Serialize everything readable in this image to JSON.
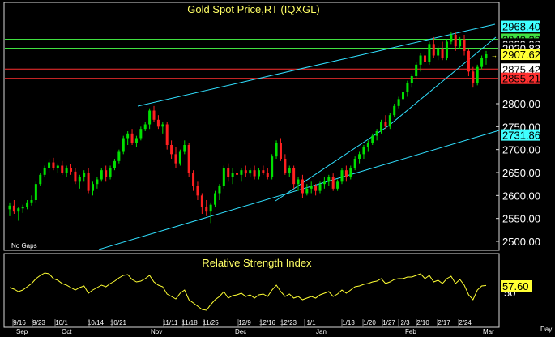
{
  "colors": {
    "bg": "#000000",
    "frame": "#d8d8d8",
    "up": "#00e000",
    "down": "#ff2020",
    "price_line_green": "#40e040",
    "price_line_red": "#ff3030",
    "channel": "#30e0ff",
    "rsi": "#ffff33",
    "title": "#ffff66"
  },
  "main_panel": {
    "title": "Gold Spot Price,RT  (IQXGL)",
    "note": "No Gaps",
    "y_ticks": [
      "2500.00",
      "2550.00",
      "2600.00",
      "2650.00",
      "2700.00",
      "2750.00",
      "2800.00"
    ],
    "y_tick_values": [
      2500,
      2550,
      2600,
      2650,
      2700,
      2750,
      2800
    ],
    "price_tags": [
      {
        "text": "2968.40",
        "value": 2968.4,
        "bg": "#40ffff",
        "fg": "#000000"
      },
      {
        "text": "2940.33",
        "value": 2940.33,
        "bg": "#40e040",
        "fg": "#000000"
      },
      {
        "text": "2929.98",
        "value": 2929.98,
        "bg": "#000000",
        "fg": "#ffffff"
      },
      {
        "text": "2920.83",
        "value": 2920.83,
        "bg": "#000000",
        "fg": "#ffffff"
      },
      {
        "text": "2907.62",
        "value": 2907.62,
        "bg": "#ffff33",
        "fg": "#000000"
      },
      {
        "text": "2875.42",
        "value": 2875.42,
        "bg": "#ffffff",
        "fg": "#000000"
      },
      {
        "text": "2855.21",
        "value": 2855.21,
        "bg": "#ff3030",
        "fg": "#000000"
      },
      {
        "text": "2731.86",
        "value": 2731.86,
        "bg": "#40ffff",
        "fg": "#000000"
      }
    ],
    "horizontal_lines": [
      {
        "value": 2940.33,
        "color": "#40e040"
      },
      {
        "value": 2920.83,
        "color": "#40e040"
      },
      {
        "value": 2875.42,
        "color": "#ff3030"
      },
      {
        "value": 2855.21,
        "color": "#ff3030"
      }
    ]
  },
  "rsi_panel": {
    "title": "Relative Strength Index",
    "value_tag": "57.60",
    "value": 57.6,
    "ref_label": "50"
  },
  "x_axis": {
    "date_labels": [
      "9/16",
      "9/23",
      "10/1",
      "10/14",
      "10/21",
      "11/11",
      "11/18",
      "11/25",
      "12/9",
      "12/16",
      "12/23",
      "1/1",
      "1/13",
      "1/20",
      "1/27",
      "2/3",
      "2/10",
      "2/17",
      "2/24"
    ],
    "month_labels": [
      "Sep",
      "Oct",
      "Nov",
      "Dec",
      "Jan",
      "Feb",
      "Mar"
    ],
    "period_label": "Day"
  },
  "chart_data": {
    "type": "candlestick",
    "title": "Gold Spot Price,RT  (IQXGL)",
    "ylim": [
      2480,
      2980
    ],
    "period": "Day",
    "series": [
      {
        "name": "Gold Spot Price",
        "ohlc": [
          [
            2570,
            2585,
            2555,
            2578
          ],
          [
            2578,
            2590,
            2560,
            2565
          ],
          [
            2565,
            2575,
            2545,
            2572
          ],
          [
            2572,
            2580,
            2562,
            2575
          ],
          [
            2575,
            2590,
            2570,
            2585
          ],
          [
            2585,
            2600,
            2578,
            2590
          ],
          [
            2590,
            2630,
            2585,
            2625
          ],
          [
            2625,
            2650,
            2620,
            2645
          ],
          [
            2645,
            2665,
            2640,
            2660
          ],
          [
            2660,
            2680,
            2650,
            2672
          ],
          [
            2672,
            2682,
            2655,
            2660
          ],
          [
            2660,
            2670,
            2650,
            2665
          ],
          [
            2665,
            2675,
            2645,
            2650
          ],
          [
            2650,
            2665,
            2640,
            2660
          ],
          [
            2660,
            2668,
            2645,
            2652
          ],
          [
            2652,
            2660,
            2625,
            2630
          ],
          [
            2630,
            2645,
            2615,
            2640
          ],
          [
            2640,
            2655,
            2630,
            2650
          ],
          [
            2650,
            2660,
            2605,
            2610
          ],
          [
            2610,
            2630,
            2600,
            2625
          ],
          [
            2625,
            2640,
            2615,
            2635
          ],
          [
            2635,
            2660,
            2630,
            2655
          ],
          [
            2655,
            2665,
            2630,
            2640
          ],
          [
            2640,
            2665,
            2635,
            2660
          ],
          [
            2660,
            2680,
            2655,
            2675
          ],
          [
            2675,
            2700,
            2670,
            2695
          ],
          [
            2695,
            2730,
            2690,
            2725
          ],
          [
            2725,
            2740,
            2710,
            2735
          ],
          [
            2735,
            2745,
            2710,
            2715
          ],
          [
            2715,
            2730,
            2705,
            2725
          ],
          [
            2725,
            2750,
            2720,
            2745
          ],
          [
            2745,
            2760,
            2740,
            2755
          ],
          [
            2755,
            2790,
            2745,
            2785
          ],
          [
            2785,
            2795,
            2760,
            2765
          ],
          [
            2765,
            2775,
            2745,
            2750
          ],
          [
            2750,
            2760,
            2735,
            2755
          ],
          [
            2755,
            2760,
            2700,
            2710
          ],
          [
            2710,
            2720,
            2680,
            2690
          ],
          [
            2690,
            2705,
            2660,
            2670
          ],
          [
            2670,
            2700,
            2665,
            2695
          ],
          [
            2695,
            2720,
            2690,
            2710
          ],
          [
            2710,
            2715,
            2640,
            2650
          ],
          [
            2650,
            2655,
            2610,
            2620
          ],
          [
            2620,
            2630,
            2590,
            2600
          ],
          [
            2600,
            2605,
            2560,
            2575
          ],
          [
            2575,
            2590,
            2555,
            2565
          ],
          [
            2565,
            2585,
            2540,
            2580
          ],
          [
            2580,
            2610,
            2575,
            2605
          ],
          [
            2605,
            2625,
            2590,
            2620
          ],
          [
            2620,
            2665,
            2615,
            2660
          ],
          [
            2660,
            2670,
            2630,
            2640
          ],
          [
            2640,
            2660,
            2625,
            2650
          ],
          [
            2650,
            2670,
            2640,
            2645
          ],
          [
            2645,
            2660,
            2630,
            2655
          ],
          [
            2655,
            2665,
            2640,
            2648
          ],
          [
            2648,
            2660,
            2640,
            2655
          ],
          [
            2655,
            2665,
            2635,
            2642
          ],
          [
            2642,
            2660,
            2635,
            2655
          ],
          [
            2655,
            2665,
            2645,
            2650
          ],
          [
            2650,
            2660,
            2635,
            2640
          ],
          [
            2640,
            2690,
            2635,
            2685
          ],
          [
            2685,
            2720,
            2680,
            2715
          ],
          [
            2715,
            2725,
            2675,
            2680
          ],
          [
            2680,
            2690,
            2645,
            2650
          ],
          [
            2650,
            2665,
            2640,
            2660
          ],
          [
            2660,
            2665,
            2615,
            2625
          ],
          [
            2625,
            2640,
            2610,
            2635
          ],
          [
            2635,
            2645,
            2595,
            2605
          ],
          [
            2605,
            2625,
            2600,
            2615
          ],
          [
            2615,
            2630,
            2605,
            2620
          ],
          [
            2620,
            2625,
            2600,
            2610
          ],
          [
            2610,
            2630,
            2605,
            2625
          ],
          [
            2625,
            2640,
            2615,
            2630
          ],
          [
            2630,
            2645,
            2620,
            2640
          ],
          [
            2640,
            2648,
            2610,
            2615
          ],
          [
            2615,
            2635,
            2610,
            2630
          ],
          [
            2630,
            2660,
            2625,
            2655
          ],
          [
            2655,
            2665,
            2630,
            2640
          ],
          [
            2640,
            2665,
            2635,
            2660
          ],
          [
            2660,
            2685,
            2655,
            2680
          ],
          [
            2680,
            2695,
            2670,
            2690
          ],
          [
            2690,
            2710,
            2680,
            2705
          ],
          [
            2705,
            2720,
            2695,
            2715
          ],
          [
            2715,
            2735,
            2710,
            2730
          ],
          [
            2730,
            2745,
            2720,
            2740
          ],
          [
            2740,
            2765,
            2735,
            2760
          ],
          [
            2760,
            2775,
            2745,
            2750
          ],
          [
            2750,
            2780,
            2745,
            2775
          ],
          [
            2775,
            2800,
            2770,
            2795
          ],
          [
            2795,
            2815,
            2790,
            2810
          ],
          [
            2810,
            2830,
            2800,
            2825
          ],
          [
            2825,
            2850,
            2815,
            2845
          ],
          [
            2845,
            2865,
            2835,
            2860
          ],
          [
            2860,
            2890,
            2855,
            2885
          ],
          [
            2885,
            2910,
            2870,
            2905
          ],
          [
            2905,
            2915,
            2880,
            2890
          ],
          [
            2890,
            2935,
            2885,
            2930
          ],
          [
            2930,
            2945,
            2900,
            2905
          ],
          [
            2905,
            2925,
            2895,
            2920
          ],
          [
            2920,
            2935,
            2895,
            2900
          ],
          [
            2900,
            2940,
            2895,
            2935
          ],
          [
            2935,
            2955,
            2930,
            2950
          ],
          [
            2950,
            2955,
            2915,
            2925
          ],
          [
            2925,
            2945,
            2920,
            2940
          ],
          [
            2940,
            2950,
            2905,
            2915
          ],
          [
            2915,
            2920,
            2860,
            2870
          ],
          [
            2870,
            2880,
            2835,
            2845
          ],
          [
            2845,
            2885,
            2840,
            2880
          ],
          [
            2880,
            2905,
            2875,
            2900
          ],
          [
            2900,
            2915,
            2885,
            2907.62
          ]
        ]
      }
    ],
    "annotations": {
      "horizontal_levels": [
        2940.33,
        2920.83,
        2875.42,
        2855.21
      ],
      "tagged_values": [
        2968.4,
        2940.33,
        2929.98,
        2920.83,
        2907.62,
        2875.42,
        2855.21,
        2731.86
      ]
    },
    "rsi": {
      "name": "Relative Strength Index",
      "ylim": [
        20,
        80
      ],
      "last": 57.6,
      "values": [
        55,
        53,
        50,
        52,
        56,
        60,
        66,
        70,
        73,
        72,
        66,
        64,
        60,
        58,
        55,
        52,
        55,
        57,
        48,
        52,
        55,
        58,
        56,
        60,
        63,
        67,
        70,
        71,
        65,
        62,
        63,
        66,
        70,
        62,
        58,
        56,
        47,
        44,
        41,
        48,
        52,
        40,
        36,
        32,
        28,
        27,
        34,
        40,
        44,
        50,
        42,
        45,
        46,
        48,
        44,
        46,
        42,
        46,
        47,
        44,
        52,
        58,
        50,
        44,
        47,
        42,
        44,
        40,
        42,
        44,
        42,
        46,
        48,
        50,
        44,
        47,
        52,
        48,
        52,
        56,
        57,
        59,
        60,
        62,
        63,
        66,
        60,
        62,
        65,
        66,
        66,
        68,
        68,
        70,
        72,
        66,
        70,
        62,
        64,
        60,
        66,
        69,
        60,
        65,
        58,
        46,
        40,
        52,
        57,
        57.6
      ]
    }
  }
}
